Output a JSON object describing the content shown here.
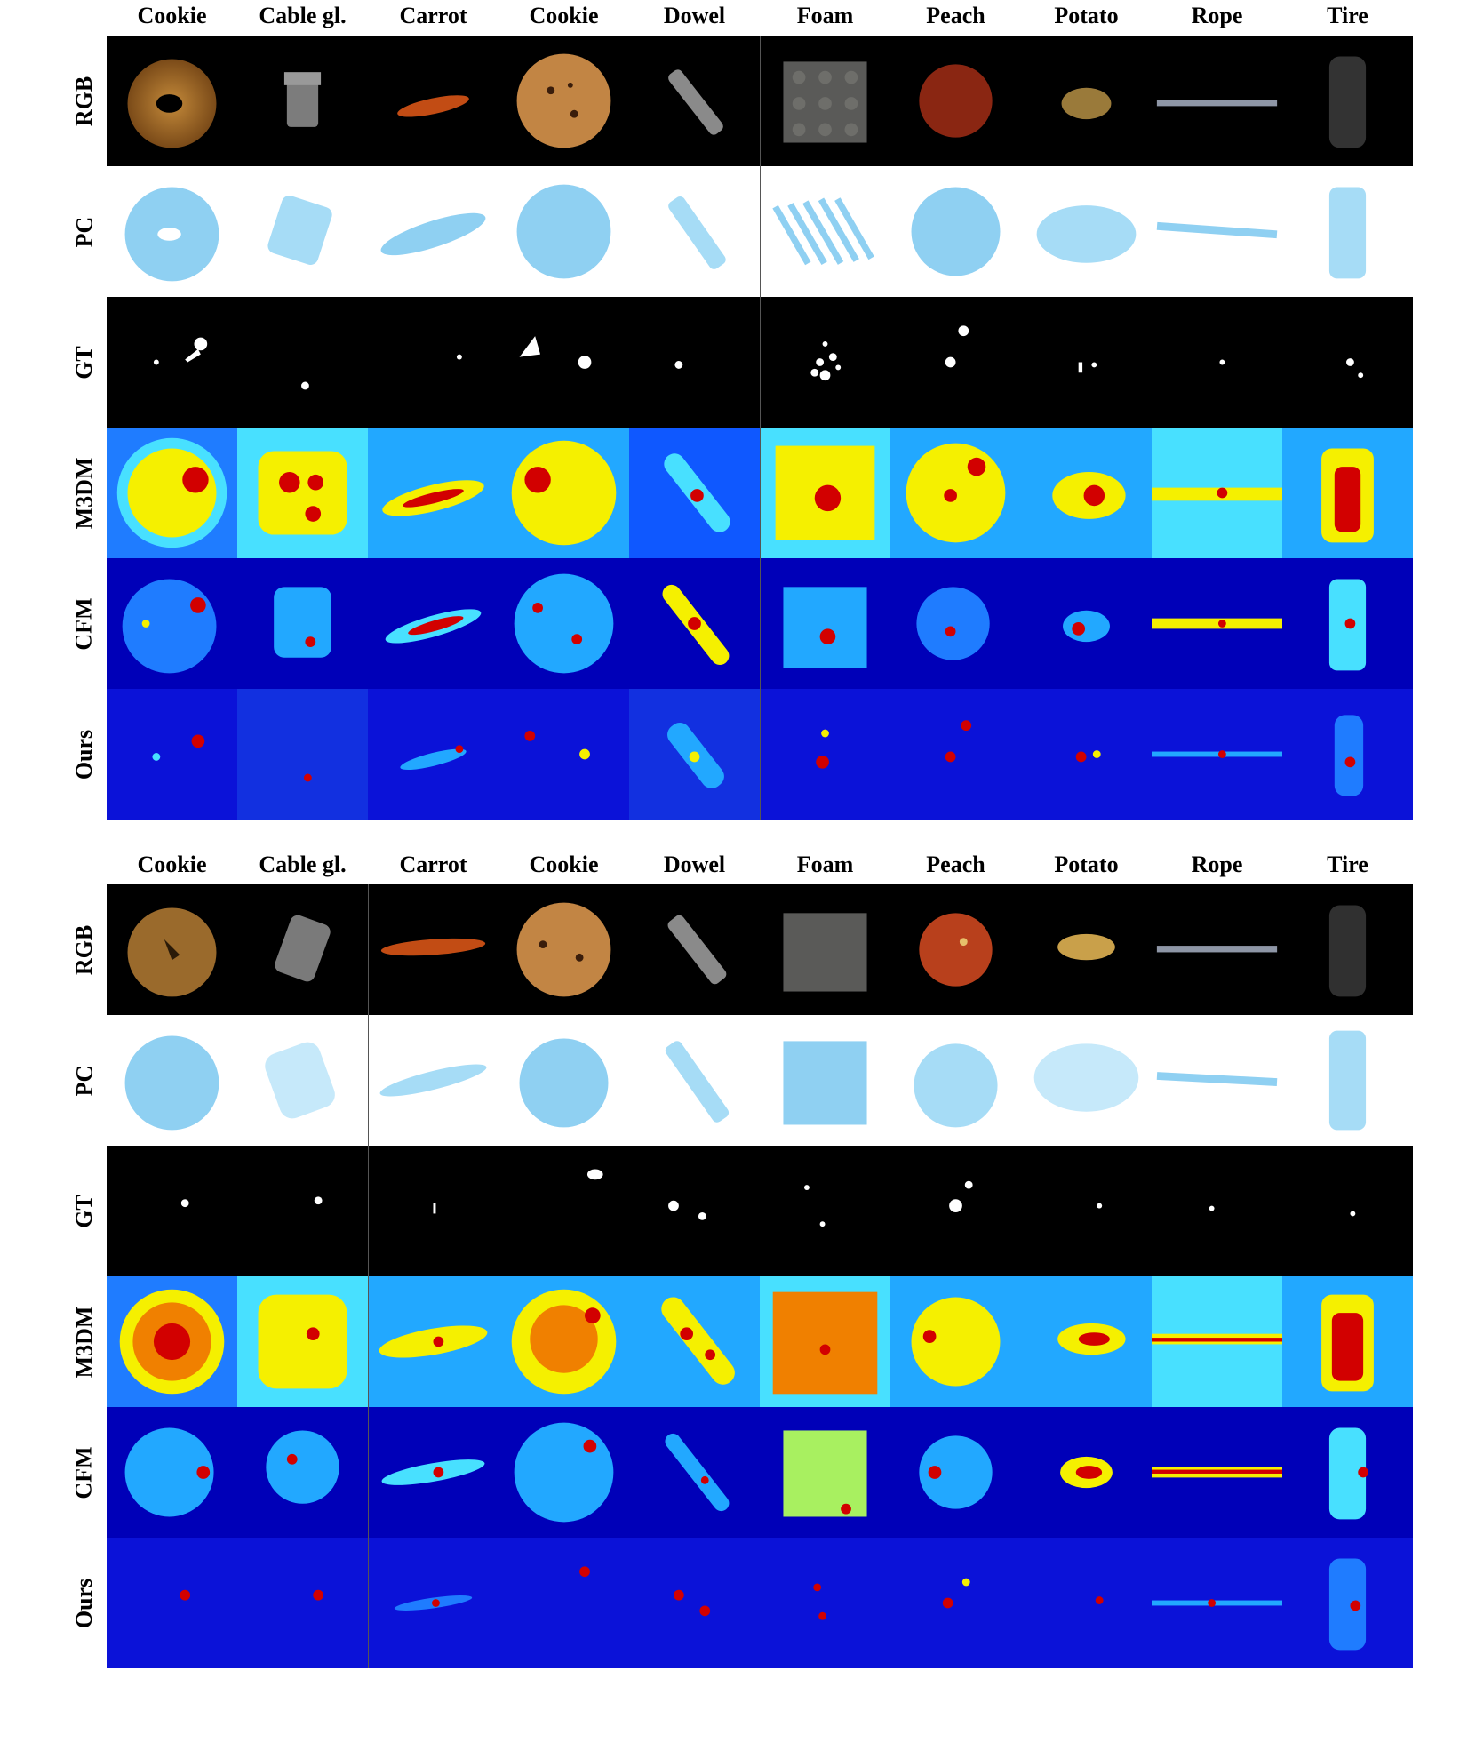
{
  "figure": {
    "panels": [
      {
        "columns": [
          "Cookie",
          "Cable gl.",
          "Carrot",
          "Cookie",
          "Dowel",
          "Foam",
          "Peach",
          "Potato",
          "Rope",
          "Tire"
        ],
        "rows": [
          "RGB",
          "PC",
          "GT",
          "M3DM",
          "CFM",
          "Ours"
        ]
      },
      {
        "columns": [
          "Cookie",
          "Cable gl.",
          "Carrot",
          "Cookie",
          "Dowel",
          "Foam",
          "Peach",
          "Potato",
          "Rope",
          "Tire"
        ],
        "rows": [
          "RGB",
          "PC",
          "GT",
          "M3DM",
          "CFM",
          "Ours"
        ]
      }
    ],
    "colors": {
      "pc_blue": "#8fd0f2",
      "heat_low": "#0000b8",
      "heat_mid": "#22d3ff",
      "heat_yellow": "#f5f000",
      "heat_high": "#d20000"
    }
  }
}
